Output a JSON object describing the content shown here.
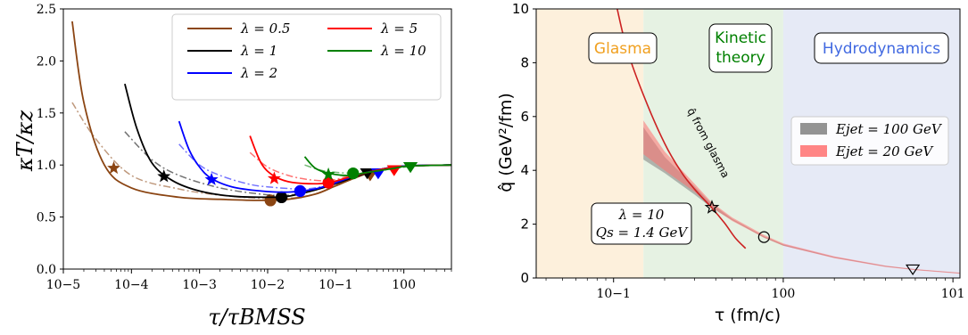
{
  "chart_data": [
    {
      "type": "line",
      "xscale": "log",
      "xlim": [
        1e-05,
        5
      ],
      "ylim": [
        0.0,
        2.5
      ],
      "xlabel": "τ/τBMSS",
      "ylabel": "κT/κz",
      "xticks": [
        "10−5",
        "10−4",
        "10−3",
        "10−2",
        "10−1",
        "100"
      ],
      "yticks": [
        "0.0",
        "0.5",
        "1.0",
        "1.5",
        "2.0",
        "2.5"
      ],
      "legend_position": "top-right",
      "series": [
        {
          "name": "λ = 0.5",
          "color": "#8B4513",
          "solid": {
            "x": [
              1.35e-05,
              2e-05,
              4e-05,
              0.0001,
              0.0005,
              0.002,
              0.008,
              0.02,
              0.05,
              0.1,
              0.2,
              0.4,
              1,
              5
            ],
            "y": [
              2.38,
              1.6,
              1.0,
              0.78,
              0.69,
              0.67,
              0.66,
              0.67,
              0.72,
              0.8,
              0.88,
              0.95,
              0.99,
              1.0
            ]
          },
          "dashdot": {
            "x": [
              1.35e-05,
              3e-05,
              0.0001,
              0.0005,
              0.002,
              0.008,
              0.02,
              0.05,
              0.1,
              0.2,
              0.4,
              1,
              5
            ],
            "y": [
              1.6,
              1.25,
              0.9,
              0.77,
              0.71,
              0.68,
              0.68,
              0.72,
              0.8,
              0.88,
              0.95,
              0.99,
              1.0
            ]
          },
          "markers": [
            {
              "shape": "star",
              "x": 5.5e-05,
              "y": 0.97
            },
            {
              "shape": "circle",
              "x": 0.011,
              "y": 0.66
            },
            {
              "shape": "triangle",
              "x": 0.32,
              "y": 0.9
            }
          ]
        },
        {
          "name": "λ = 1",
          "color": "#000000",
          "solid": {
            "x": [
              8e-05,
              0.00012,
              0.0002,
              0.0004,
              0.001,
              0.003,
              0.01,
              0.02,
              0.05,
              0.1,
              0.2,
              0.4,
              1,
              5
            ],
            "y": [
              1.78,
              1.35,
              1.02,
              0.85,
              0.75,
              0.7,
              0.69,
              0.7,
              0.76,
              0.82,
              0.89,
              0.95,
              0.99,
              1.0
            ]
          },
          "dashdot": {
            "x": [
              8e-05,
              0.0002,
              0.0005,
              0.002,
              0.008,
              0.02,
              0.05,
              0.1,
              0.2,
              0.4,
              1,
              5
            ],
            "y": [
              1.32,
              1.05,
              0.9,
              0.78,
              0.72,
              0.71,
              0.76,
              0.82,
              0.89,
              0.95,
              0.99,
              1.0
            ]
          },
          "markers": [
            {
              "shape": "star",
              "x": 0.0003,
              "y": 0.89
            },
            {
              "shape": "circle",
              "x": 0.016,
              "y": 0.69
            },
            {
              "shape": "triangle",
              "x": 0.29,
              "y": 0.92
            }
          ]
        },
        {
          "name": "λ = 2",
          "color": "#0000ff",
          "solid": {
            "x": [
              0.0005,
              0.0007,
              0.001,
              0.0015,
              0.003,
              0.008,
              0.02,
              0.05,
              0.1,
              0.2,
              0.4,
              1,
              5
            ],
            "y": [
              1.42,
              1.15,
              0.98,
              0.87,
              0.79,
              0.75,
              0.74,
              0.77,
              0.83,
              0.9,
              0.95,
              0.99,
              1.0
            ]
          },
          "dashdot": {
            "x": [
              0.0005,
              0.001,
              0.002,
              0.005,
              0.01,
              0.03,
              0.06,
              0.1,
              0.2,
              0.4,
              1,
              5
            ],
            "y": [
              1.2,
              1.0,
              0.9,
              0.82,
              0.79,
              0.77,
              0.79,
              0.84,
              0.9,
              0.95,
              0.99,
              1.0
            ]
          },
          "markers": [
            {
              "shape": "star",
              "x": 0.0015,
              "y": 0.86
            },
            {
              "shape": "circle",
              "x": 0.03,
              "y": 0.75
            },
            {
              "shape": "triangle",
              "x": 0.42,
              "y": 0.92
            }
          ]
        },
        {
          "name": "λ = 5",
          "color": "#ff0000",
          "solid": {
            "x": [
              0.0055,
              0.008,
              0.012,
              0.02,
              0.04,
              0.08,
              0.15,
              0.3,
              0.6,
              1.2,
              5
            ],
            "y": [
              1.28,
              1.02,
              0.9,
              0.84,
              0.82,
              0.83,
              0.88,
              0.93,
              0.97,
              0.99,
              1.0
            ]
          },
          "dashdot": {
            "x": [
              0.0055,
              0.01,
              0.02,
              0.04,
              0.08,
              0.15,
              0.3,
              0.6,
              1.2,
              5
            ],
            "y": [
              1.12,
              0.98,
              0.9,
              0.86,
              0.85,
              0.89,
              0.93,
              0.97,
              0.99,
              1.0
            ]
          },
          "markers": [
            {
              "shape": "star",
              "x": 0.0125,
              "y": 0.87
            },
            {
              "shape": "circle",
              "x": 0.078,
              "y": 0.83
            },
            {
              "shape": "triangle",
              "x": 0.72,
              "y": 0.95
            }
          ]
        },
        {
          "name": "λ = 10",
          "color": "#008000",
          "solid": {
            "x": [
              0.035,
              0.05,
              0.08,
              0.15,
              0.3,
              0.6,
              1.2,
              5
            ],
            "y": [
              1.08,
              0.97,
              0.92,
              0.9,
              0.93,
              0.96,
              0.99,
              1.0
            ]
          },
          "dashdot": {
            "x": [
              0.035,
              0.06,
              0.1,
              0.2,
              0.4,
              0.8,
              1.5,
              5
            ],
            "y": [
              1.0,
              0.95,
              0.93,
              0.92,
              0.94,
              0.97,
              0.99,
              1.0
            ]
          },
          "markers": [
            {
              "shape": "star",
              "x": 0.078,
              "y": 0.91
            },
            {
              "shape": "circle",
              "x": 0.18,
              "y": 0.92
            },
            {
              "shape": "triangle",
              "x": 1.25,
              "y": 0.98
            }
          ]
        }
      ]
    },
    {
      "type": "line",
      "xscale": "log",
      "xlim": [
        0.035,
        11
      ],
      "ylim": [
        0,
        10
      ],
      "xlabel": "τ (fm/c)",
      "ylabel": "q̂ (GeV²/fm)",
      "xticks": [
        "10−1",
        "100",
        "101"
      ],
      "yticks": [
        "0",
        "2",
        "4",
        "6",
        "8",
        "10"
      ],
      "regions": [
        {
          "label": "Glasma",
          "x": [
            0.035,
            0.15
          ],
          "fill": "#fdf0dc",
          "text_color": "#f0a020"
        },
        {
          "label": "Kinetic theory",
          "x": [
            0.15,
            1.0
          ],
          "fill": "#e6f2e3",
          "text_color": "#008000"
        },
        {
          "label": "Hydrodynamics",
          "x": [
            1.0,
            11
          ],
          "fill": "#e6eaf6",
          "text_color": "#4169e1"
        }
      ],
      "glasma_curve": {
        "label": "q̂ from glasma",
        "color": "#cc2222",
        "x": [
          0.105,
          0.12,
          0.15,
          0.2,
          0.25,
          0.3,
          0.38,
          0.45,
          0.52,
          0.6
        ],
        "y": [
          10.0,
          8.5,
          6.8,
          5.0,
          3.95,
          3.3,
          2.6,
          2.05,
          1.5,
          1.1
        ]
      },
      "bands": [
        {
          "name": "Ejet = 100 GeV",
          "color": "#808080",
          "x": [
            0.15,
            0.2,
            0.3,
            0.38,
            0.5,
            0.77,
            1.0,
            2,
            4,
            6,
            11
          ],
          "y_low": [
            4.4,
            3.9,
            3.1,
            2.6,
            2.15,
            1.5,
            1.2,
            0.75,
            0.42,
            0.3,
            0.17
          ],
          "y_high": [
            5.6,
            4.5,
            3.4,
            2.75,
            2.2,
            1.55,
            1.25,
            0.78,
            0.45,
            0.32,
            0.19
          ]
        },
        {
          "name": "Ejet = 20 GeV",
          "color": "#ff7070",
          "x": [
            0.15,
            0.2,
            0.3,
            0.38,
            0.5,
            0.77,
            1.0,
            2,
            4,
            6,
            11
          ],
          "y_low": [
            4.6,
            4.0,
            3.2,
            2.62,
            2.12,
            1.5,
            1.2,
            0.74,
            0.41,
            0.29,
            0.16
          ],
          "y_high": [
            5.85,
            4.7,
            3.5,
            2.8,
            2.25,
            1.6,
            1.28,
            0.8,
            0.46,
            0.33,
            0.2
          ]
        }
      ],
      "markers": [
        {
          "shape": "star",
          "x": 0.38,
          "y": 2.62
        },
        {
          "shape": "circle",
          "x": 0.77,
          "y": 1.52
        },
        {
          "shape": "triangle",
          "x": 5.8,
          "y": 0.32
        }
      ],
      "annotation": {
        "line1": "λ = 10",
        "line2": "Qs = 1.4 GeV"
      }
    }
  ]
}
